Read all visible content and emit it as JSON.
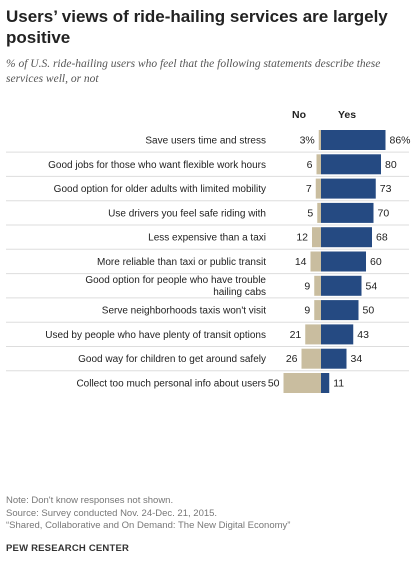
{
  "title": "Users’ views of ride-hailing services are largely positive",
  "subtitle": "% of U.S. ride-hailing users who feel that the following statements describe these services well, or not",
  "notes": [
    "Note: Don't know responses not shown.",
    "Source: Survey conducted Nov. 24-Dec. 21, 2015.",
    "“Shared, Collaborative and On Demand: The New Digital Economy”"
  ],
  "brand": "PEW RESEARCH CENTER",
  "colors": {
    "no": "#c9bd9f",
    "yes": "#254a82",
    "divider": "#dddddd"
  },
  "chart_data": {
    "type": "bar",
    "orientation": "horizontal-diverging",
    "headers": [
      "No",
      "Yes"
    ],
    "categories": [
      "Save users time and stress",
      "Good jobs for those who want flexible work hours",
      "Good option for older adults with limited mobility",
      "Use drivers you feel safe riding with",
      "Less expensive than a taxi",
      "More reliable than taxi or public transit",
      "Good option for people who have trouble hailing cabs",
      "Serve neighborhoods taxis won't visit",
      "Used by people who have plenty of transit options",
      "Good way for children to get around safely",
      "Collect too much personal info about users"
    ],
    "series": [
      {
        "name": "No",
        "values": [
          3,
          6,
          7,
          5,
          12,
          14,
          9,
          9,
          21,
          26,
          50
        ],
        "labels": [
          "3%",
          "6",
          "7",
          "5",
          "12",
          "14",
          "9",
          "9",
          "21",
          "26",
          "50"
        ]
      },
      {
        "name": "Yes",
        "values": [
          86,
          80,
          73,
          70,
          68,
          60,
          54,
          50,
          43,
          34,
          11
        ],
        "labels": [
          "86%",
          "80",
          "73",
          "70",
          "68",
          "60",
          "54",
          "50",
          "43",
          "34",
          "11"
        ]
      }
    ]
  }
}
